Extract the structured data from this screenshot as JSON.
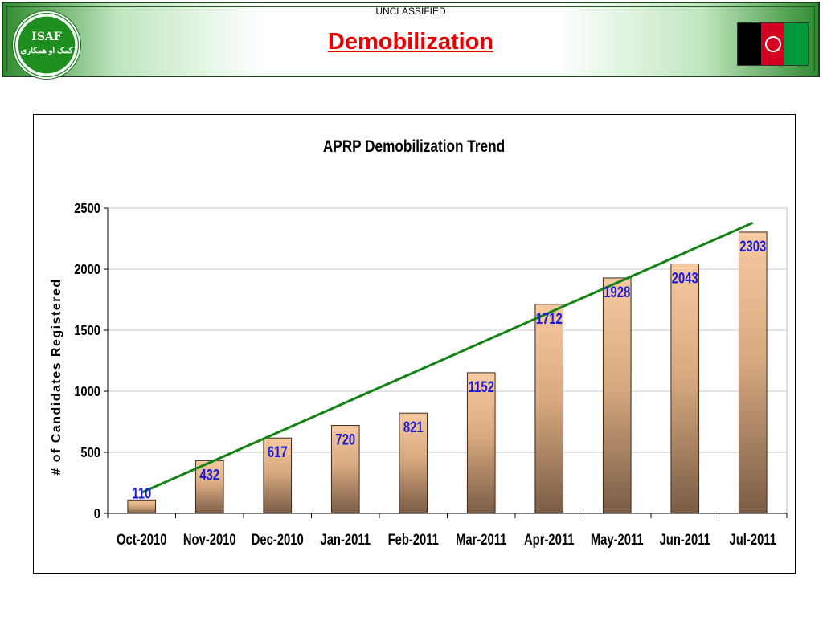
{
  "header": {
    "classification": "UNCLASSIFIED",
    "title": "Demobilization",
    "logo_text": "ISAF",
    "logo_subtext": "کمک او همکاری"
  },
  "colors": {
    "title_red": "#e60000",
    "banner_green": "#2e8b2e",
    "bar_top": "#f6c9a0",
    "bar_bottom": "#7a5c45",
    "value_label": "#1a1adb",
    "trend_line": "#158215"
  },
  "chart_data": {
    "type": "bar",
    "title": "APRP Demobilization Trend",
    "xlabel": "",
    "ylabel": "# of Candidates Registered",
    "categories": [
      "Oct-2010",
      "Nov-2010",
      "Dec-2010",
      "Jan-2011",
      "Feb-2011",
      "Mar-2011",
      "Apr-2011",
      "May-2011",
      "Jun-2011",
      "Jul-2011"
    ],
    "values": [
      110,
      432,
      617,
      720,
      821,
      1152,
      1712,
      1928,
      2043,
      2303
    ],
    "ylim": [
      0,
      2500
    ],
    "yticks": [
      "0",
      "500",
      "1000",
      "1500",
      "2000",
      "2500"
    ],
    "grid": true,
    "legend": "none",
    "trendline": {
      "type": "linear",
      "start": 170,
      "end": 2380
    }
  }
}
